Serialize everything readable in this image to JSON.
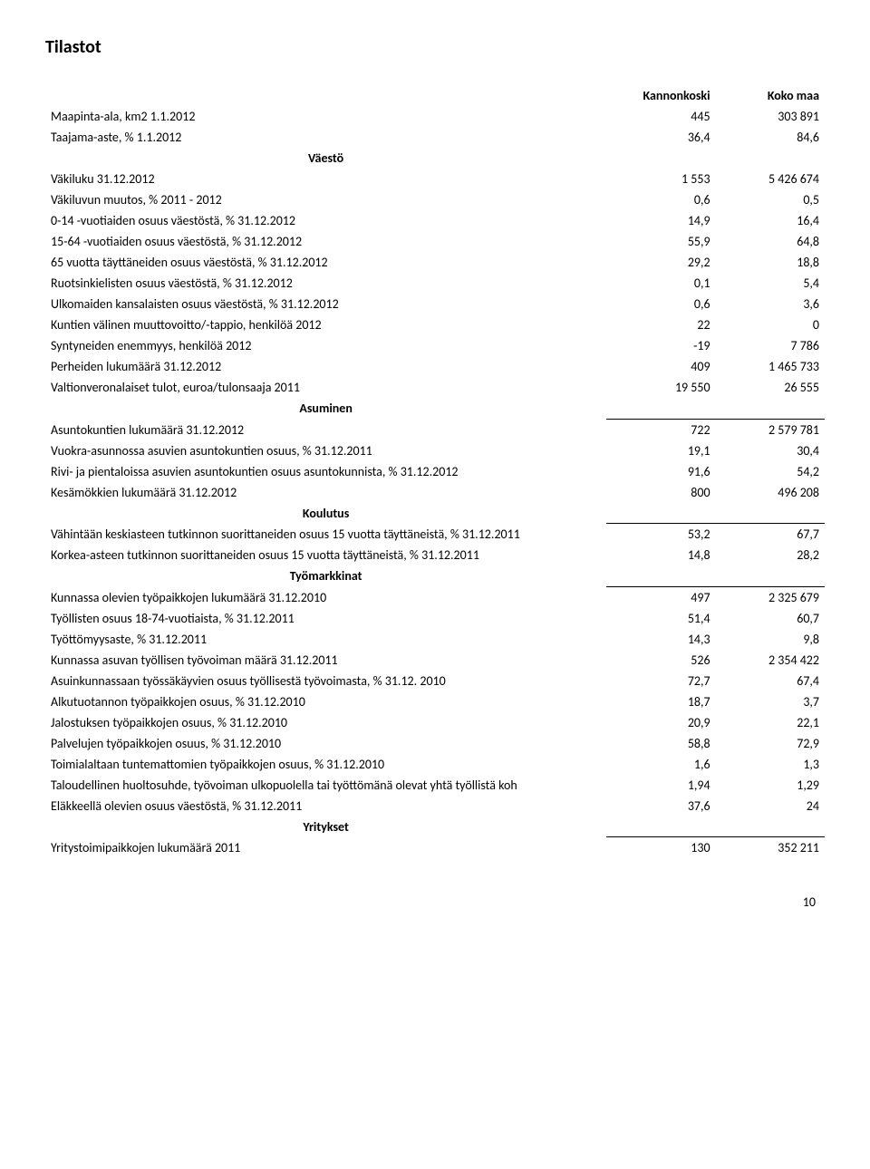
{
  "title": "Tilastot",
  "page_number": "10",
  "columns": {
    "c1": "Kannonkoski",
    "c2": "Koko maa"
  },
  "rows": [
    {
      "type": "header",
      "label": "",
      "v1": "Kannonkoski",
      "v2": "Koko maa"
    },
    {
      "label": "Maapinta-ala, km2 1.1.2012",
      "v1": "445",
      "v2": "303 891"
    },
    {
      "label": "Taajama-aste, % 1.1.2012",
      "v1": "36,4",
      "v2": "84,6"
    },
    {
      "type": "section-first",
      "label": "Väestö"
    },
    {
      "label": "Väkiluku 31.12.2012",
      "v1": "1 553",
      "v2": "5 426 674"
    },
    {
      "label": "Väkiluvun muutos, % 2011 - 2012",
      "v1": "0,6",
      "v2": "0,5"
    },
    {
      "label": "0-14 -vuotiaiden osuus väestöstä, % 31.12.2012",
      "v1": "14,9",
      "v2": "16,4"
    },
    {
      "label": "15-64 -vuotiaiden osuus väestöstä, % 31.12.2012",
      "v1": "55,9",
      "v2": "64,8"
    },
    {
      "label": "65 vuotta täyttäneiden osuus väestöstä, % 31.12.2012",
      "v1": "29,2",
      "v2": "18,8"
    },
    {
      "label": "Ruotsinkielisten osuus väestöstä, % 31.12.2012",
      "v1": "0,1",
      "v2": "5,4"
    },
    {
      "label": "Ulkomaiden kansalaisten osuus väestöstä, % 31.12.2012",
      "v1": "0,6",
      "v2": "3,6"
    },
    {
      "label": "Kuntien välinen muuttovoitto/-tappio, henkilöä 2012",
      "v1": "22",
      "v2": "0"
    },
    {
      "label": "Syntyneiden enemmyys, henkilöä 2012",
      "v1": "-19",
      "v2": "7 786"
    },
    {
      "label": "Perheiden lukumäärä 31.12.2012",
      "v1": "409",
      "v2": "1 465 733"
    },
    {
      "label": "Valtionveronalaiset tulot, euroa/tulonsaaja 2011",
      "v1": "19 550",
      "v2": "26 555"
    },
    {
      "type": "section",
      "label": "Asuminen"
    },
    {
      "label": "Asuntokuntien lukumäärä 31.12.2012",
      "v1": "722",
      "v2": "2 579 781"
    },
    {
      "label": "Vuokra-asunnossa asuvien asuntokuntien osuus, % 31.12.2011",
      "v1": "19,1",
      "v2": "30,4"
    },
    {
      "label": "Rivi- ja pientaloissa asuvien asuntokuntien osuus asuntokunnista, % 31.12.2012",
      "v1": "91,6",
      "v2": "54,2"
    },
    {
      "label": "Kesämökkien lukumäärä 31.12.2012",
      "v1": "800",
      "v2": "496 208"
    },
    {
      "type": "section",
      "label": "Koulutus"
    },
    {
      "label": "Vähintään keskiasteen tutkinnon suorittaneiden osuus 15 vuotta täyttäneistä, % 31.12.2011",
      "v1": "53,2",
      "v2": "67,7"
    },
    {
      "label": "Korkea-asteen tutkinnon suorittaneiden osuus 15 vuotta täyttäneistä, % 31.12.2011",
      "v1": "14,8",
      "v2": "28,2"
    },
    {
      "type": "section",
      "label": "Työmarkkinat"
    },
    {
      "label": "Kunnassa olevien työpaikkojen lukumäärä 31.12.2010",
      "v1": "497",
      "v2": "2 325 679"
    },
    {
      "label": "Työllisten osuus 18-74-vuotiaista, % 31.12.2011",
      "v1": "51,4",
      "v2": "60,7"
    },
    {
      "label": "Työttömyysaste, % 31.12.2011",
      "v1": "14,3",
      "v2": "9,8"
    },
    {
      "label": "Kunnassa asuvan työllisen työvoiman määrä 31.12.2011",
      "v1": "526",
      "v2": "2 354 422"
    },
    {
      "label": "Asuinkunnassaan työssäkäyvien osuus työllisestä työvoimasta, % 31.12. 2010",
      "v1": "72,7",
      "v2": "67,4"
    },
    {
      "label": "Alkutuotannon työpaikkojen osuus, % 31.12.2010",
      "v1": "18,7",
      "v2": "3,7"
    },
    {
      "label": "Jalostuksen työpaikkojen osuus, % 31.12.2010",
      "v1": "20,9",
      "v2": "22,1"
    },
    {
      "label": "Palvelujen työpaikkojen osuus, % 31.12.2010",
      "v1": "58,8",
      "v2": "72,9"
    },
    {
      "label": "Toimialaltaan tuntemattomien työpaikkojen osuus, % 31.12.2010",
      "v1": "1,6",
      "v2": "1,3"
    },
    {
      "label": "Taloudellinen huoltosuhde, työvoiman ulkopuolella tai työttömänä olevat yhtä työllistä koh",
      "v1": "1,94",
      "v2": "1,29"
    },
    {
      "label": "Eläkkeellä olevien osuus väestöstä, % 31.12.2011",
      "v1": "37,6",
      "v2": "24"
    },
    {
      "type": "section",
      "label": "Yritykset"
    },
    {
      "label": "Yritystoimipaikkojen lukumäärä 2011",
      "v1": "130",
      "v2": "352 211"
    }
  ]
}
